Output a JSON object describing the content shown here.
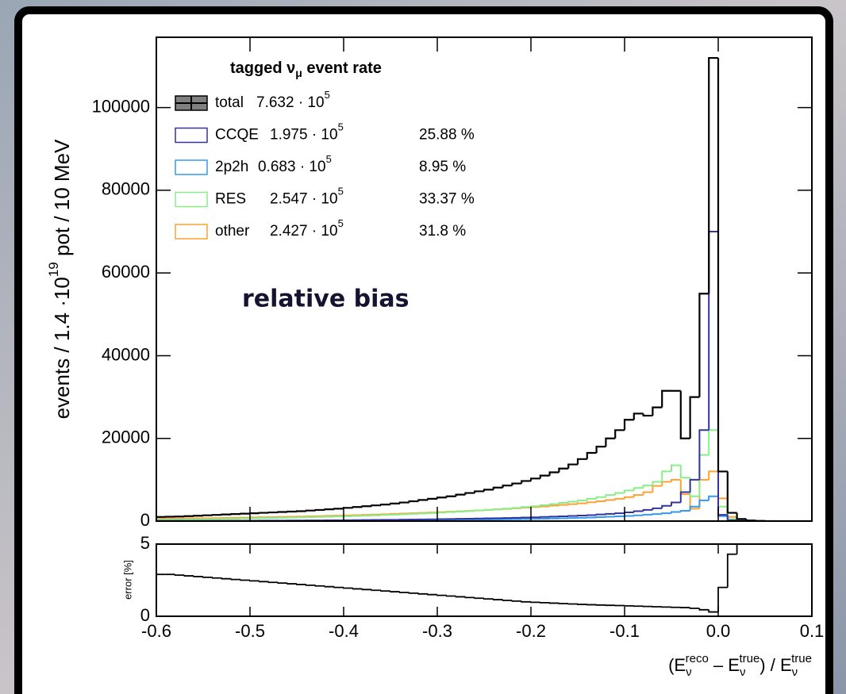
{
  "chart_data": {
    "type": "histogram",
    "legend_title": [
      "tagged ν",
      "μ",
      " event rate"
    ],
    "annotation": "relative bias",
    "ylabel": [
      "events / 1.4 ·10",
      "19",
      " pot / 10 MeV"
    ],
    "xlabel": [
      [
        "(E",
        "ν",
        "reco"
      ],
      [
        " – E",
        "ν",
        "true"
      ],
      [
        ") / E",
        "ν",
        "true"
      ]
    ],
    "xlim": [
      -0.6,
      0.1
    ],
    "xticks": [
      -0.6,
      -0.5,
      -0.4,
      -0.3,
      -0.2,
      -0.1,
      {
        "value": 0,
        "label": "0.0"
      },
      0.1
    ],
    "ylim": [
      0,
      117000
    ],
    "yticks": [
      0,
      20000,
      40000,
      60000,
      80000,
      100000
    ],
    "bins": [
      -0.6,
      -0.59,
      -0.58,
      -0.57,
      -0.56,
      -0.55,
      -0.54,
      -0.53,
      -0.52,
      -0.51,
      -0.5,
      -0.49,
      -0.48,
      -0.47,
      -0.46,
      -0.45,
      -0.44,
      -0.43,
      -0.42,
      -0.41,
      -0.4,
      -0.39,
      -0.38,
      -0.37,
      -0.36,
      -0.35,
      -0.34,
      -0.33,
      -0.32,
      -0.31,
      -0.3,
      -0.29,
      -0.28,
      -0.27,
      -0.26,
      -0.25,
      -0.24,
      -0.23,
      -0.22,
      -0.21,
      -0.2,
      -0.19,
      -0.18,
      -0.17,
      -0.16,
      -0.15,
      -0.14,
      -0.13,
      -0.12,
      -0.11,
      -0.1,
      -0.09,
      -0.08,
      -0.07,
      -0.06,
      -0.05,
      -0.04,
      -0.03,
      -0.02,
      -0.01,
      0,
      0.01,
      0.02,
      0.03,
      0.04,
      0.05,
      0.06,
      0.07,
      0.08,
      0.09,
      0.1
    ],
    "series": [
      {
        "name": "total",
        "color": "#000000",
        "fill": "#808080",
        "rate": [
          "7.632 · 10",
          "5"
        ],
        "values": [
          1000,
          1050,
          1100,
          1200,
          1300,
          1400,
          1500,
          1600,
          1700,
          1800,
          1900,
          2000,
          2100,
          2200,
          2300,
          2400,
          2550,
          2700,
          2850,
          3000,
          3200,
          3400,
          3600,
          3800,
          4000,
          4250,
          4500,
          4800,
          5100,
          5400,
          5700,
          6000,
          6400,
          6800,
          7200,
          7600,
          8100,
          8600,
          9100,
          9700,
          10300,
          11000,
          11800,
          12700,
          13700,
          15000,
          16500,
          18000,
          20000,
          22000,
          24500,
          26000,
          25500,
          27500,
          31500,
          31500,
          20000,
          30000,
          55000,
          112000,
          12000,
          2000,
          500,
          150,
          50,
          0,
          0,
          0,
          0,
          0
        ]
      },
      {
        "name": "CCQE",
        "color": "#33339f",
        "rate": [
          "1.975 · 10",
          "5"
        ],
        "share": "25.88 %",
        "values": [
          50,
          50,
          60,
          60,
          70,
          70,
          80,
          80,
          90,
          90,
          100,
          110,
          120,
          130,
          140,
          150,
          160,
          170,
          180,
          200,
          220,
          240,
          260,
          280,
          300,
          320,
          350,
          380,
          410,
          440,
          470,
          500,
          540,
          580,
          620,
          660,
          700,
          750,
          800,
          860,
          920,
          1000,
          1080,
          1160,
          1250,
          1350,
          1450,
          1600,
          1750,
          1900,
          2100,
          2400,
          2700,
          3100,
          3700,
          4500,
          7000,
          10000,
          22000,
          70000,
          1500,
          200,
          50,
          20,
          10,
          0,
          0,
          0,
          0,
          0
        ]
      },
      {
        "name": "2p2h",
        "color": "#3399ee",
        "rate": [
          "0.683 · 10",
          "5"
        ],
        "share": "8.95 %",
        "values": [
          20,
          20,
          25,
          25,
          30,
          30,
          35,
          35,
          40,
          40,
          45,
          50,
          55,
          60,
          65,
          70,
          75,
          80,
          90,
          100,
          110,
          120,
          130,
          140,
          150,
          165,
          180,
          195,
          210,
          230,
          250,
          270,
          290,
          310,
          340,
          370,
          400,
          430,
          460,
          500,
          540,
          580,
          630,
          680,
          740,
          800,
          870,
          950,
          1050,
          1150,
          1250,
          1400,
          1550,
          1700,
          1900,
          2200,
          2500,
          3500,
          5000,
          6000,
          1200,
          200,
          50,
          20,
          10,
          0,
          0,
          0,
          0,
          0
        ]
      },
      {
        "name": "RES",
        "color": "#88ee88",
        "rate": [
          "2.547 · 10",
          "5"
        ],
        "share": "33.37 %",
        "values": [
          300,
          330,
          360,
          390,
          420,
          450,
          490,
          530,
          570,
          620,
          670,
          710,
          750,
          800,
          850,
          900,
          950,
          1000,
          1060,
          1120,
          1180,
          1250,
          1320,
          1400,
          1480,
          1560,
          1650,
          1750,
          1850,
          1950,
          2060,
          2180,
          2300,
          2430,
          2570,
          2710,
          2860,
          3020,
          3200,
          3400,
          3600,
          3850,
          4100,
          4400,
          4700,
          5000,
          5400,
          5800,
          6300,
          6800,
          7400,
          8000,
          8600,
          9500,
          12000,
          13500,
          10500,
          6000,
          16000,
          22000,
          3500,
          500,
          150,
          50,
          20,
          0,
          0,
          0,
          0,
          0
        ]
      },
      {
        "name": "other",
        "color": "#ffa033",
        "rate": [
          "2.427 · 10",
          "5"
        ],
        "share": "31.8 %",
        "values": [
          550,
          580,
          610,
          640,
          670,
          700,
          730,
          770,
          810,
          850,
          890,
          930,
          970,
          1010,
          1060,
          1110,
          1160,
          1210,
          1270,
          1330,
          1390,
          1450,
          1520,
          1590,
          1660,
          1740,
          1820,
          1900,
          1990,
          2080,
          2170,
          2270,
          2370,
          2480,
          2590,
          2710,
          2830,
          2960,
          3100,
          3250,
          3400,
          3560,
          3730,
          3910,
          4100,
          4300,
          4550,
          4800,
          5100,
          5400,
          5800,
          6300,
          7000,
          8500,
          9500,
          10000,
          6500,
          3000,
          10000,
          12000,
          5500,
          1000,
          200,
          60,
          20,
          0,
          0,
          0,
          0,
          0
        ]
      }
    ],
    "error": {
      "ylabel": "error [%]",
      "ylim": [
        0,
        5
      ],
      "yticks": [
        0,
        5
      ],
      "color": "#000000",
      "values": [
        2.9,
        2.9,
        2.85,
        2.8,
        2.75,
        2.7,
        2.65,
        2.6,
        2.55,
        2.5,
        2.45,
        2.4,
        2.35,
        2.3,
        2.25,
        2.2,
        2.15,
        2.1,
        2.05,
        2.0,
        1.95,
        1.9,
        1.85,
        1.8,
        1.75,
        1.7,
        1.65,
        1.6,
        1.55,
        1.5,
        1.45,
        1.4,
        1.35,
        1.3,
        1.25,
        1.2,
        1.15,
        1.1,
        1.05,
        1.0,
        0.97,
        0.94,
        0.91,
        0.88,
        0.85,
        0.82,
        0.8,
        0.78,
        0.76,
        0.74,
        0.72,
        0.7,
        0.68,
        0.66,
        0.64,
        0.62,
        0.6,
        0.55,
        0.45,
        0.3,
        2.0,
        4.3,
        5.5,
        null,
        null,
        null,
        null,
        null,
        null,
        null
      ]
    }
  }
}
